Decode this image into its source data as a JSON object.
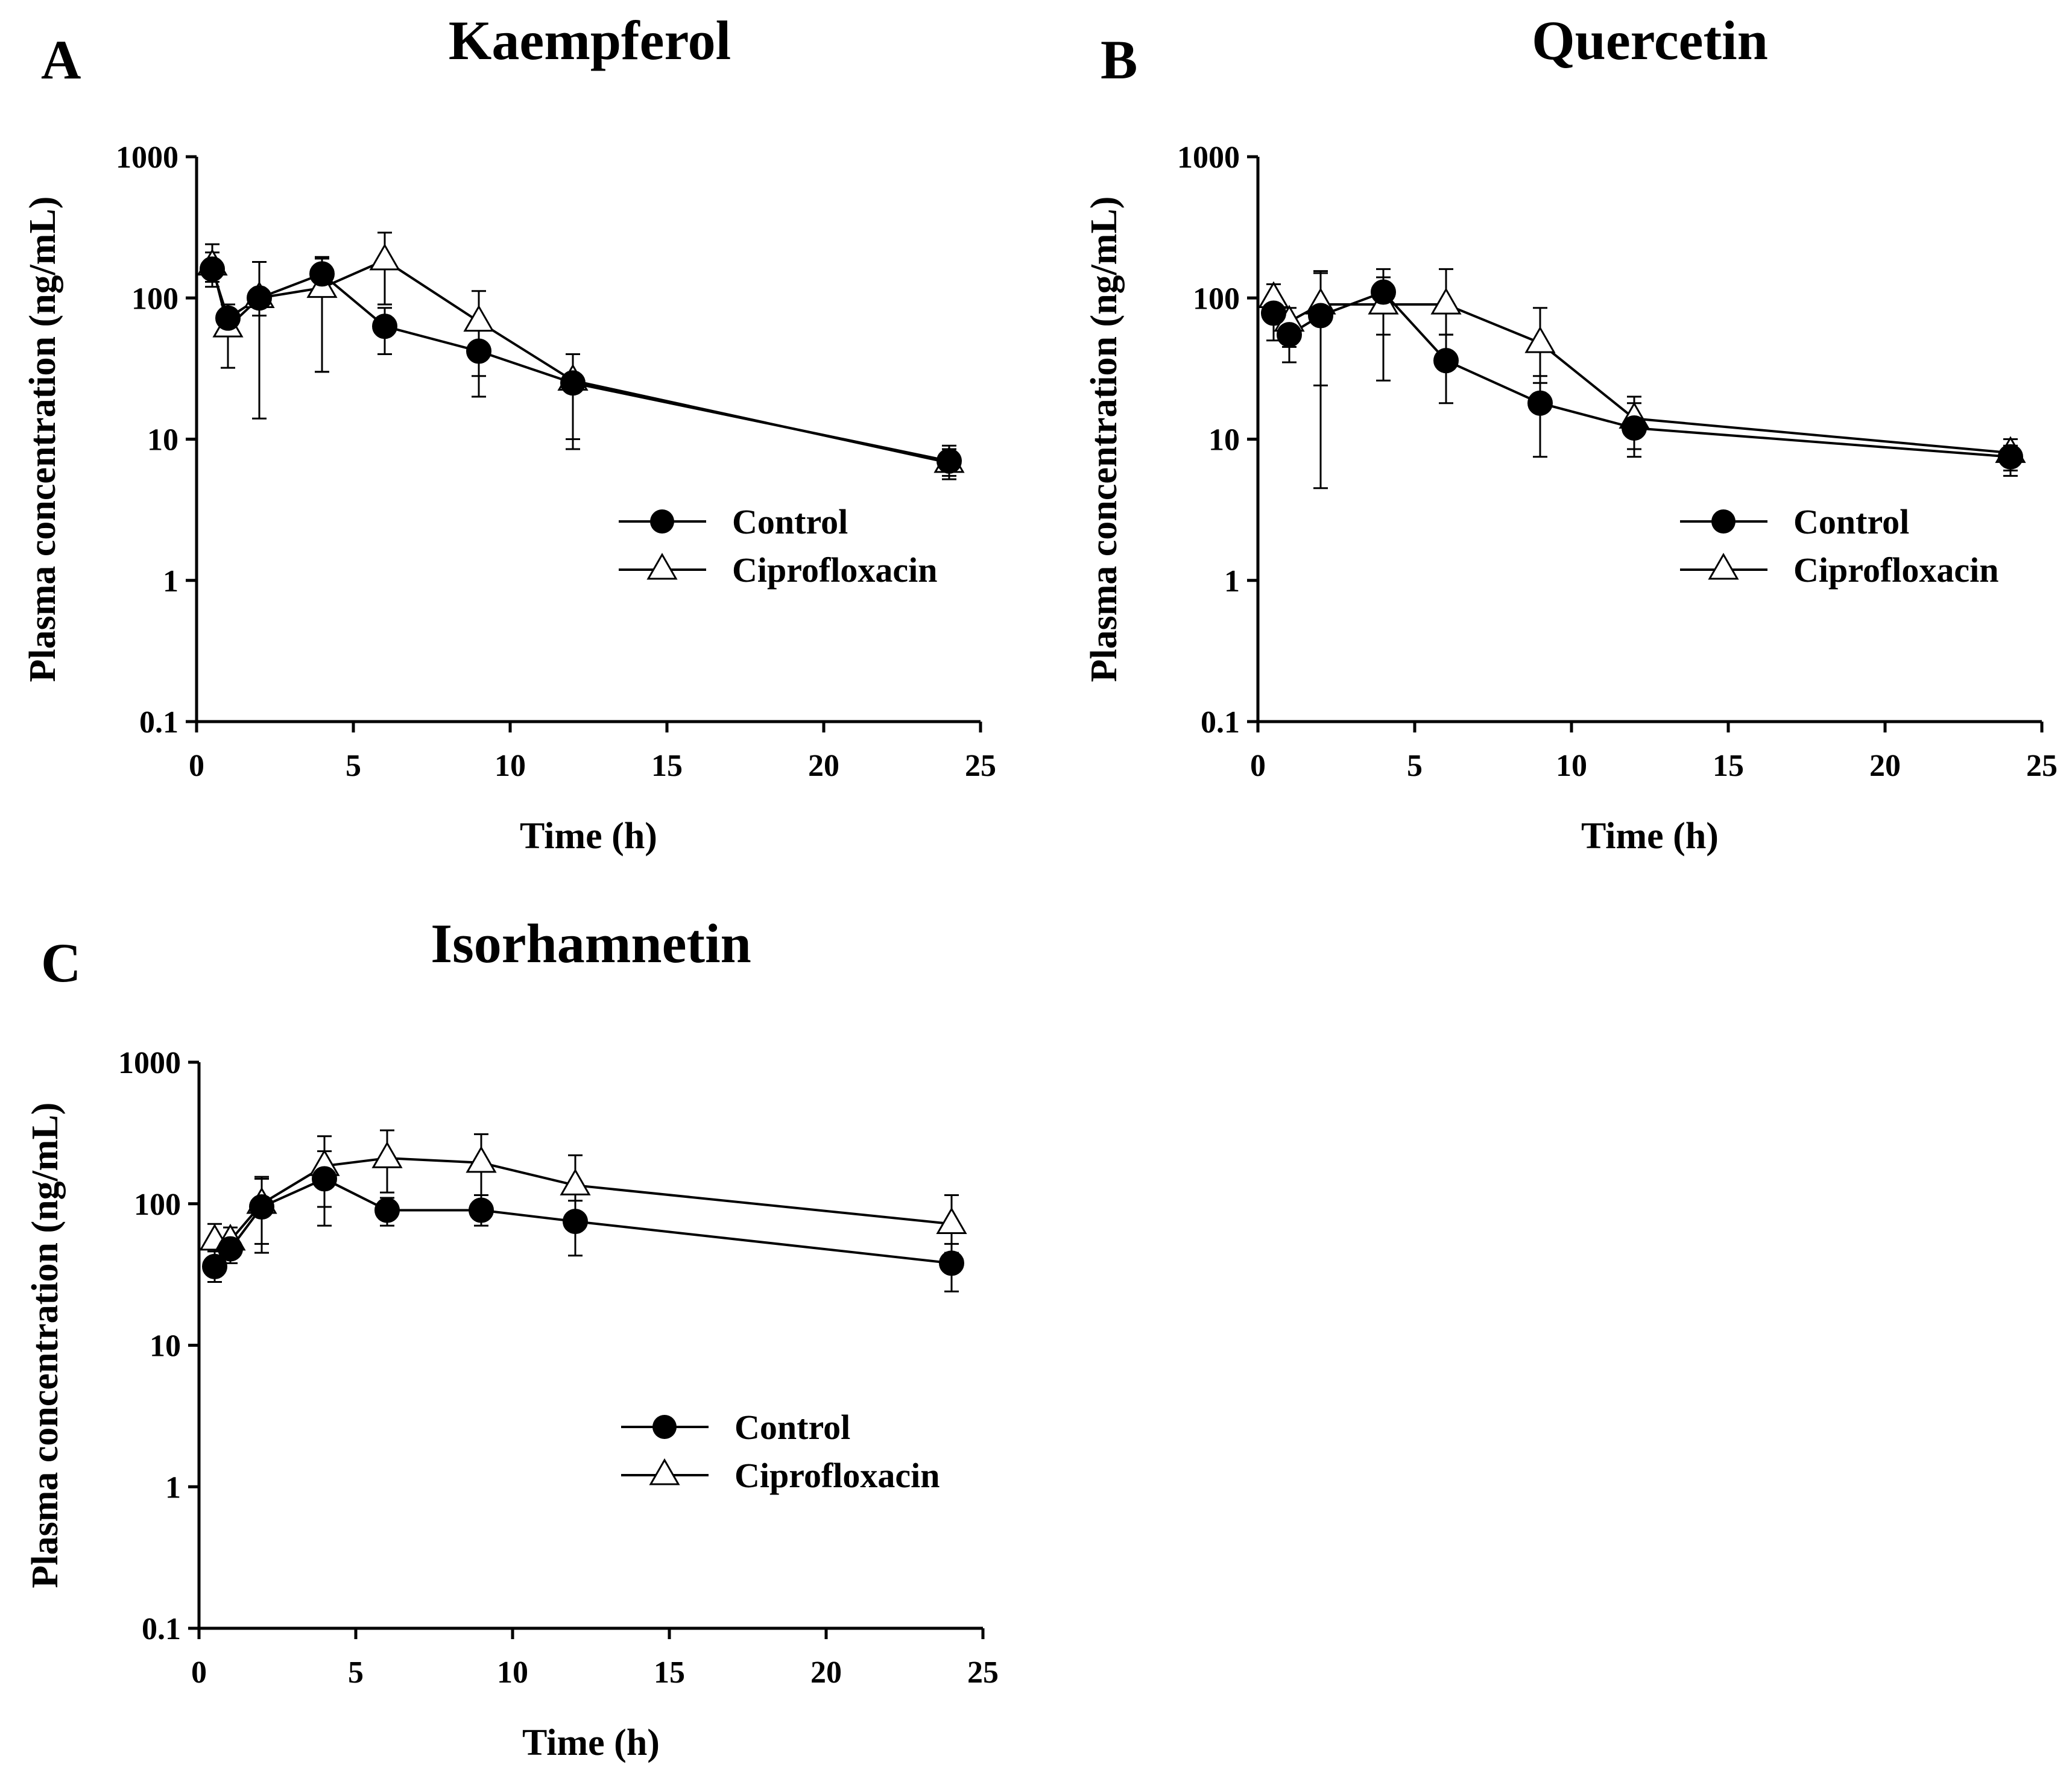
{
  "chart_data": [
    {
      "type": "line",
      "panel_label": "A",
      "title": "Kaempferol",
      "xlabel": "Time (h)",
      "ylabel": "Plasma concentration (ng/mL)",
      "yscale": "log",
      "xlim": [
        0,
        25
      ],
      "ylim": [
        0.1,
        1000
      ],
      "x_ticks": [
        "0",
        "5",
        "10",
        "15",
        "20",
        "25"
      ],
      "y_ticks": [
        "0.1",
        "1",
        "10",
        "100",
        "1000"
      ],
      "legend": [
        "Control",
        "Ciprofloxacin"
      ],
      "legend_position": "right-middle",
      "series": [
        {
          "name": "Control",
          "marker": "filled-circle",
          "x": [
            0.5,
            1,
            2,
            4,
            6,
            9,
            12,
            24
          ],
          "y": [
            160,
            72,
            100,
            148,
            63,
            42,
            25,
            7
          ],
          "err_lo": [
            120,
            55,
            75,
            30,
            40,
            20,
            10,
            5.5
          ],
          "err_hi": [
            210,
            90,
            180,
            195,
            85,
            60,
            40,
            8.5
          ]
        },
        {
          "name": "Ciprofloxacin",
          "marker": "open-triangle",
          "x": [
            0.5,
            1,
            2,
            4,
            6,
            9,
            12,
            24
          ],
          "y": [
            170,
            62,
            100,
            118,
            185,
            68,
            26,
            6.8
          ],
          "err_lo": [
            130,
            32,
            14,
            30,
            90,
            28,
            8.5,
            5.2
          ],
          "err_hi": [
            240,
            80,
            180,
            190,
            290,
            112,
            40,
            9
          ]
        }
      ]
    },
    {
      "type": "line",
      "panel_label": "B",
      "title": "Quercetin",
      "xlabel": "Time (h)",
      "ylabel": "Plasma concentration (ng/mL)",
      "yscale": "log",
      "xlim": [
        0,
        25
      ],
      "ylim": [
        0.1,
        1000
      ],
      "x_ticks": [
        "0",
        "5",
        "10",
        "15",
        "20",
        "25"
      ],
      "y_ticks": [
        "0.1",
        "1",
        "10",
        "100",
        "1000"
      ],
      "legend": [
        "Control",
        "Ciprofloxacin"
      ],
      "legend_position": "right-middle",
      "series": [
        {
          "name": "Control",
          "marker": "filled-circle",
          "x": [
            0.5,
            1,
            2,
            4,
            6,
            9,
            12,
            24
          ],
          "y": [
            78,
            55,
            75,
            110,
            36,
            18,
            12,
            7.5
          ],
          "err_lo": [
            50,
            35,
            4.5,
            55,
            18,
            7.5,
            7.5,
            5.5
          ],
          "err_hi": [
            100,
            70,
            150,
            160,
            55,
            28,
            18,
            9
          ]
        },
        {
          "name": "Ciprofloxacin",
          "marker": "open-triangle",
          "x": [
            0.5,
            1,
            2,
            4,
            6,
            9,
            12,
            24
          ],
          "y": [
            100,
            68,
            90,
            90,
            90,
            48,
            14,
            8
          ],
          "err_lo": [
            75,
            45,
            24,
            26,
            55,
            25,
            8.5,
            6
          ],
          "err_hi": [
            125,
            85,
            155,
            140,
            160,
            85,
            20,
            10
          ]
        }
      ]
    },
    {
      "type": "line",
      "panel_label": "C",
      "title": "Isorhamnetin",
      "xlabel": "Time (h)",
      "ylabel": "Plasma concentration (ng/mL)",
      "yscale": "log",
      "xlim": [
        0,
        25
      ],
      "ylim": [
        0.1,
        1000
      ],
      "x_ticks": [
        "0",
        "5",
        "10",
        "15",
        "20",
        "25"
      ],
      "y_ticks": [
        "0.1",
        "1",
        "10",
        "100",
        "1000"
      ],
      "legend": [
        "Control",
        "Ciprofloxacin"
      ],
      "legend_position": "right-middle",
      "series": [
        {
          "name": "Control",
          "marker": "filled-circle",
          "x": [
            0.5,
            1,
            2,
            4,
            6,
            9,
            12,
            24
          ],
          "y": [
            36,
            48,
            95,
            150,
            90,
            90,
            75,
            38
          ],
          "err_lo": [
            28,
            38,
            45,
            70,
            70,
            70,
            43,
            24
          ],
          "err_hi": [
            46,
            58,
            150,
            235,
            110,
            115,
            105,
            52
          ]
        },
        {
          "name": "Ciprofloxacin",
          "marker": "open-triangle",
          "x": [
            0.5,
            1,
            2,
            4,
            6,
            9,
            12,
            24
          ],
          "y": [
            55,
            55,
            100,
            185,
            210,
            195,
            135,
            72
          ],
          "err_lo": [
            40,
            42,
            52,
            95,
            120,
            115,
            85,
            45
          ],
          "err_hi": [
            72,
            68,
            155,
            300,
            330,
            310,
            220,
            115
          ]
        }
      ]
    }
  ]
}
